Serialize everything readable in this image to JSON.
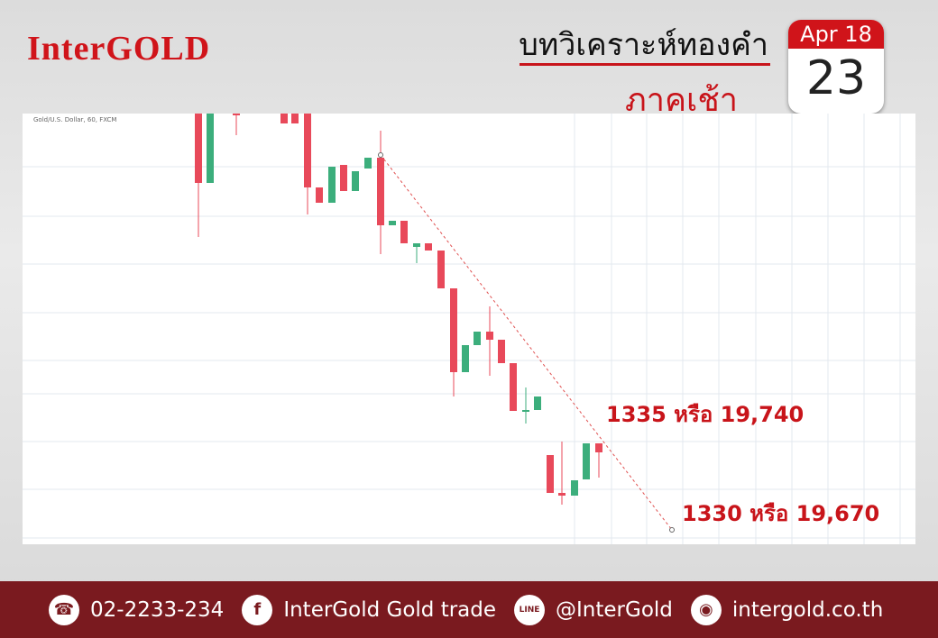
{
  "header": {
    "logo": "InterGOLD",
    "title": "บทวิเคราะห์ทองคำ",
    "subtitle": "ภาคเช้า",
    "date": {
      "month": "Apr 18",
      "day": "23"
    }
  },
  "chart": {
    "symbol": "Gold/U.S. Dollar, 60, FXCM",
    "annotations": [
      "1335 หรือ 19,740",
      "1330 หรือ 19,670"
    ]
  },
  "footer": {
    "phone": "02-2233-234",
    "facebook": "InterGold Gold trade",
    "line": "@InterGold",
    "website": "intergold.co.th"
  }
}
